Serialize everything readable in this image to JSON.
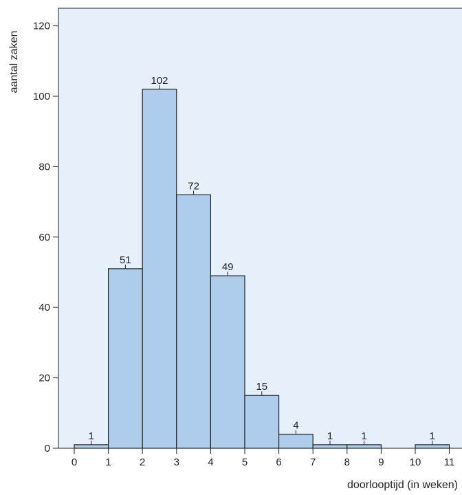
{
  "chart_data": {
    "type": "bar",
    "xlabel": "doorlooptijd (in weken)",
    "ylabel": "aantal zaken",
    "ylim": [
      0,
      125
    ],
    "xlim": [
      0,
      11
    ],
    "y_ticks": [
      0,
      20,
      40,
      60,
      80,
      100,
      120
    ],
    "x_ticks": [
      0,
      1,
      2,
      3,
      4,
      5,
      6,
      7,
      8,
      9,
      10,
      11
    ],
    "bins": [
      {
        "start": 0,
        "end": 1,
        "value": 1
      },
      {
        "start": 1,
        "end": 2,
        "value": 51
      },
      {
        "start": 2,
        "end": 3,
        "value": 102
      },
      {
        "start": 3,
        "end": 4,
        "value": 72
      },
      {
        "start": 4,
        "end": 5,
        "value": 49
      },
      {
        "start": 5,
        "end": 6,
        "value": 15
      },
      {
        "start": 6,
        "end": 7,
        "value": 4
      },
      {
        "start": 7,
        "end": 8,
        "value": 1
      },
      {
        "start": 8,
        "end": 9,
        "value": 1
      },
      {
        "start": 10,
        "end": 11,
        "value": 1
      }
    ],
    "data_labels": true,
    "grid": false,
    "colors": {
      "plot_background": "#e6f0fb",
      "bar_fill": "#aecdeb",
      "bar_stroke": "#222222"
    }
  }
}
